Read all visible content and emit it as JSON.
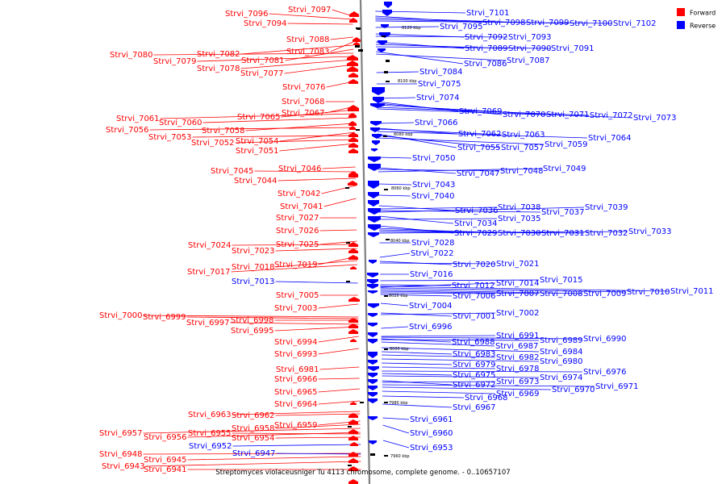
{
  "caption": "Streptomyces violaceusniger Tu 4113 chromosome, complete genome. - 0..10657107",
  "legend": [
    {
      "label": "Forward",
      "color": "#ff0000"
    },
    {
      "label": "Reverse",
      "color": "#0000ff"
    }
  ],
  "colors": {
    "forward": "#ff0000",
    "reverse": "#0000ff",
    "axis": "#808080"
  },
  "ticks": [
    "8120 kbp",
    "8100 kbp",
    "8080 kbp",
    "8060 kbp",
    "8040 kbp",
    "8020 kbp",
    "8000 kbp",
    "7980 kbp",
    "7960 kbp"
  ],
  "forward_labels": [
    "Strvi_7097",
    "Strvi_7096",
    "Strvi_7094",
    "Strvi_7088",
    "Strvi_7083",
    "Strvi_7082",
    "Strvi_7081",
    "Strvi_7080",
    "Strvi_7079",
    "Strvi_7078",
    "Strvi_7077",
    "Strvi_7076",
    "Strvi_7068",
    "Strvi_7067",
    "Strvi_7065",
    "Strvi_7061",
    "Strvi_7060",
    "Strvi_7058",
    "Strvi_7056",
    "Strvi_7054",
    "Strvi_7053",
    "Strvi_7052",
    "Strvi_7051",
    "Strvi_7046",
    "Strvi_7045",
    "Strvi_7044",
    "Strvi_7042",
    "Strvi_7041",
    "Strvi_7027",
    "Strvi_7026",
    "Strvi_7025",
    "Strvi_7024",
    "Strvi_7023",
    "Strvi_7019",
    "Strvi_7018",
    "Strvi_7017",
    "Strvi_7005",
    "Strvi_7003",
    "Strvi_7000",
    "Strvi_6999",
    "Strvi_6998",
    "Strvi_6997",
    "Strvi_6995",
    "Strvi_6994",
    "Strvi_6993",
    "Strvi_6981",
    "Strvi_6966",
    "Strvi_6965",
    "Strvi_6964",
    "Strvi_6963",
    "Strvi_6962",
    "Strvi_6959",
    "Strvi_6958",
    "Strvi_6957",
    "Strvi_6956",
    "Strvi_6955",
    "Strvi_6954",
    "Strvi_6948",
    "Strvi_6945",
    "Strvi_6943",
    "Strvi_6941"
  ],
  "reverse_labels": [
    "Strvi_7101",
    "Strvi_7098",
    "Strvi_7099",
    "Strvi_7100",
    "Strvi_7102",
    "Strvi_7095",
    "Strvi_7092",
    "Strvi_7093",
    "Strvi_7089",
    "Strvi_7090",
    "Strvi_7091",
    "Strvi_7086",
    "Strvi_7087",
    "Strvi_7084",
    "Strvi_7075",
    "Strvi_7074",
    "Strvi_7069",
    "Strvi_7070",
    "Strvi_7071",
    "Strvi_7072",
    "Strvi_7073",
    "Strvi_7066",
    "Strvi_7062",
    "Strvi_7063",
    "Strvi_7064",
    "Strvi_7055",
    "Strvi_7057",
    "Strvi_7059",
    "Strvi_7050",
    "Strvi_7047",
    "Strvi_7048",
    "Strvi_7049",
    "Strvi_7043",
    "Strvi_7040",
    "Strvi_7036",
    "Strvi_7038",
    "Strvi_7037",
    "Strvi_7039",
    "Strvi_7034",
    "Strvi_7035",
    "Strvi_7029",
    "Strvi_7030",
    "Strvi_7031",
    "Strvi_7032",
    "Strvi_7033",
    "Strvi_7028",
    "Strvi_7022",
    "Strvi_7020",
    "Strvi_7021",
    "Strvi_7016",
    "Strvi_7015",
    "Strvi_7012",
    "Strvi_7014",
    "Strvi_7006",
    "Strvi_7007",
    "Strvi_7008",
    "Strvi_7009",
    "Strvi_7010",
    "Strvi_7011",
    "Strvi_7004",
    "Strvi_7001",
    "Strvi_7002",
    "Strvi_6996",
    "Strvi_6991",
    "Strvi_6988",
    "Strvi_6987",
    "Strvi_6989",
    "Strvi_6990",
    "Strvi_6984",
    "Strvi_6983",
    "Strvi_6982",
    "Strvi_6980",
    "Strvi_6979",
    "Strvi_6978",
    "Strvi_6976",
    "Strvi_6975",
    "Strvi_6974",
    "Strvi_6972",
    "Strvi_6973",
    "Strvi_6971",
    "Strvi_6970",
    "Strvi_6969",
    "Strvi_6968",
    "Strvi_6967",
    "Strvi_6961",
    "Strvi_6960",
    "Strvi_6953",
    "Strvi_7013",
    "Strvi_6952",
    "Strvi_6947"
  ]
}
